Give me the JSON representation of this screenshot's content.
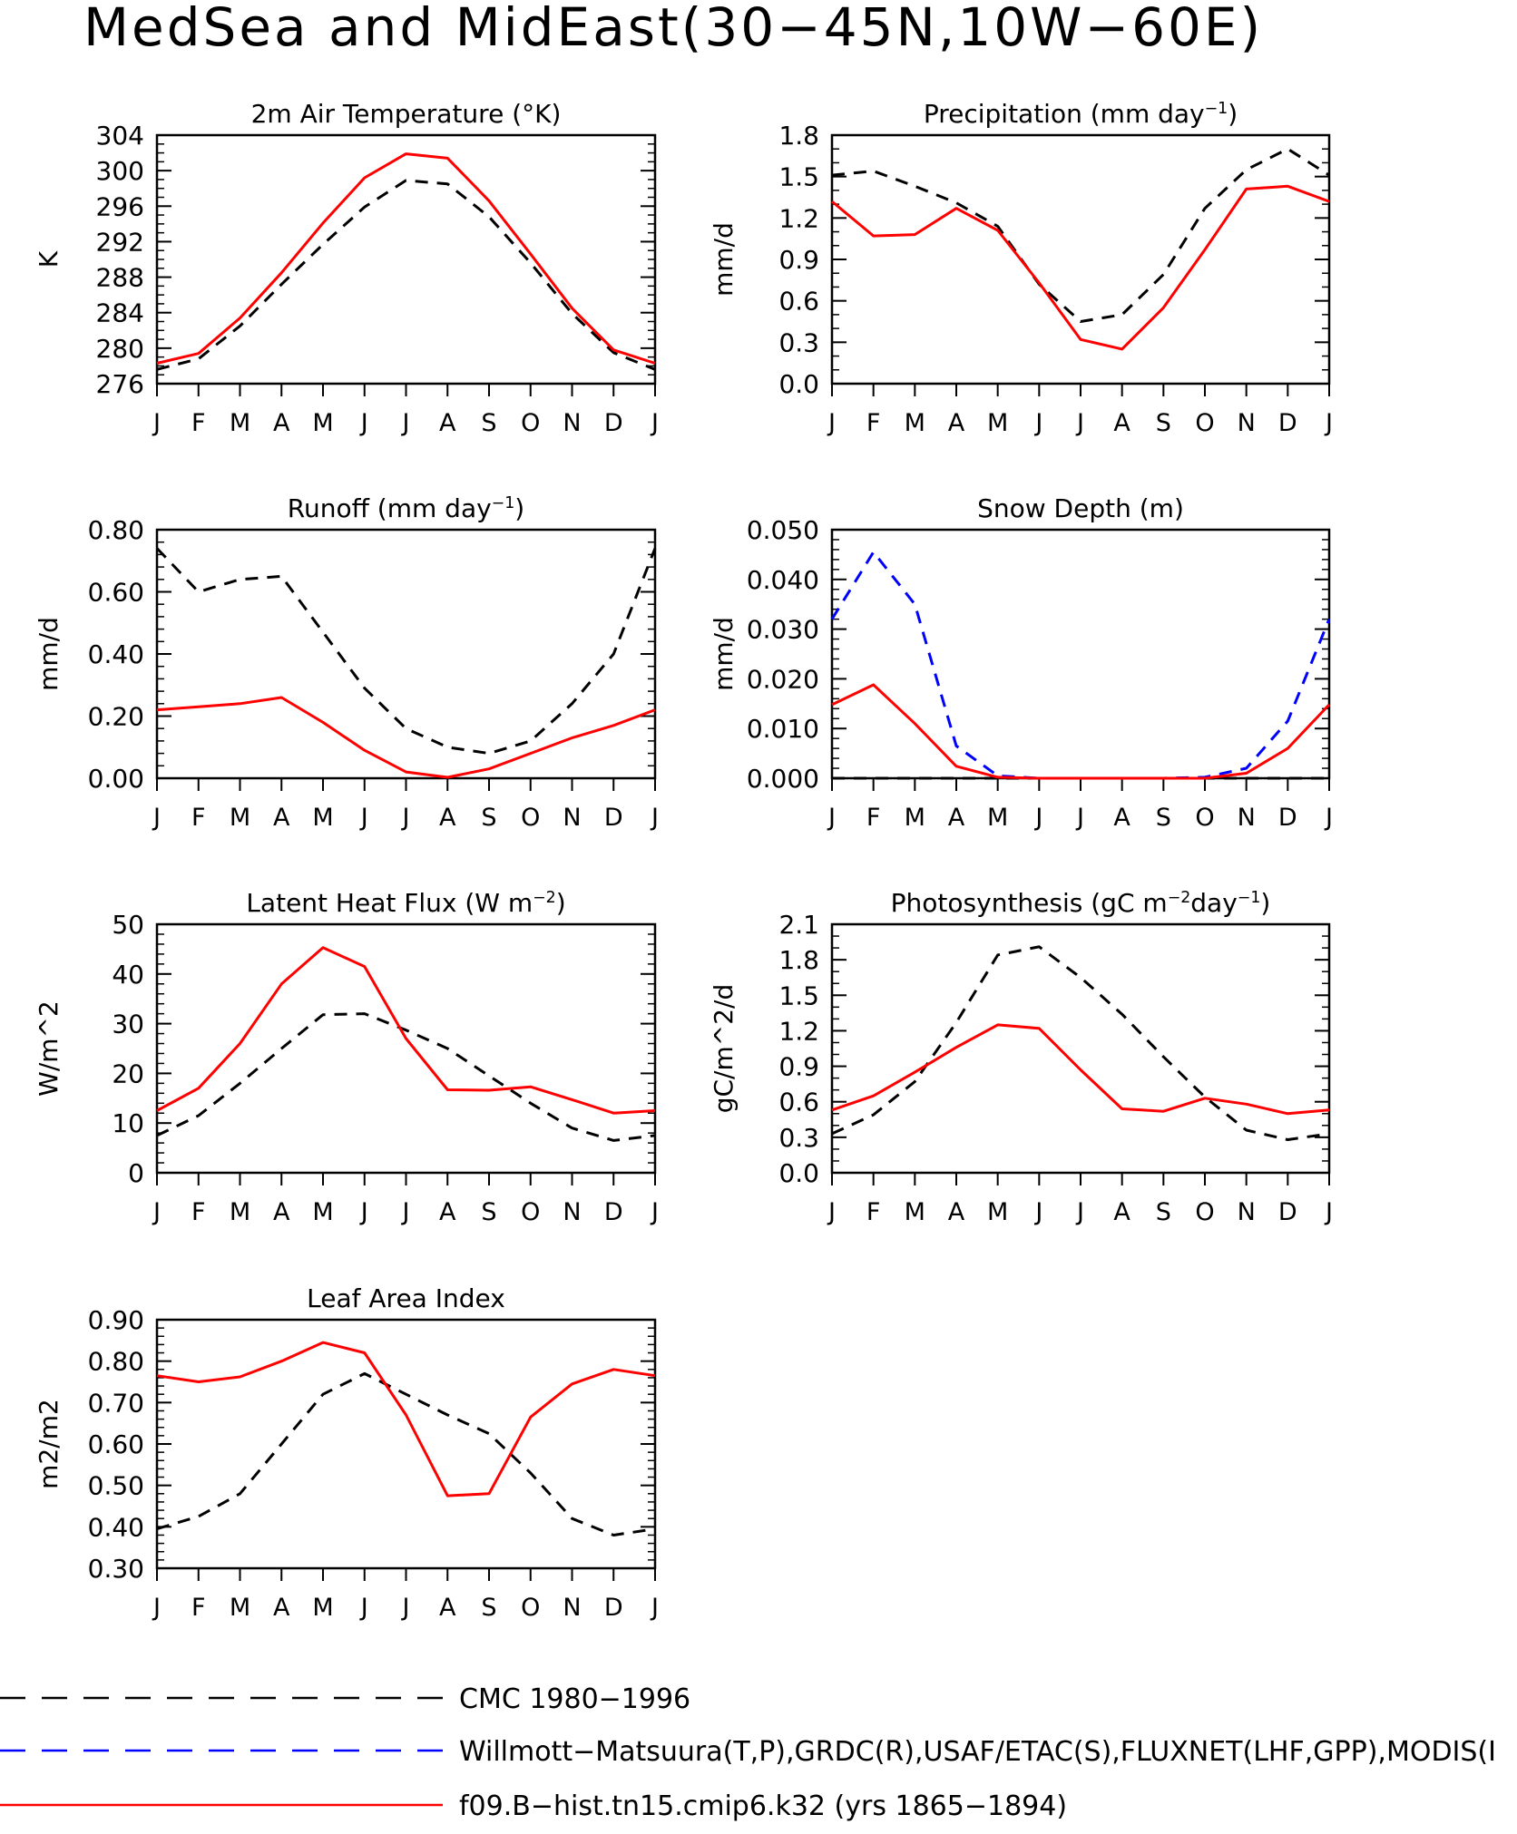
{
  "figure": {
    "title": "MedSea and MidEast(30−45N,10W−60E)",
    "legend": [
      {
        "label": "CMC 1980−1996",
        "color": "#000000",
        "dash": "dash-long"
      },
      {
        "label": "Willmott−Matsuura(T,P),GRDC(R),USAF/ETAC(S),FLUXNET(LHF,GPP),MODIS(I",
        "color": "#0000ff",
        "dash": "dash-long"
      },
      {
        "label": "f09.B−hist.tn15.cmip6.k32 (yrs 1865−1894)",
        "color": "#ff0000",
        "dash": "solid"
      }
    ],
    "colors": {
      "cmc": "#000000",
      "obs": "#0000ff",
      "model": "#ff0000"
    }
  },
  "chart_data": [
    {
      "type": "line",
      "title": "2m Air Temperature (°K)",
      "ylabel": "K",
      "x": [
        "J",
        "F",
        "M",
        "A",
        "M",
        "J",
        "J",
        "A",
        "S",
        "O",
        "N",
        "D",
        "J"
      ],
      "ylim": [
        276,
        304
      ],
      "yticks": [
        "276",
        "280",
        "284",
        "288",
        "292",
        "296",
        "300",
        "304"
      ],
      "yminor": 1,
      "series": [
        {
          "name": "CMC 1980−1996",
          "values": [
            277.6,
            278.8,
            282.5,
            287.2,
            291.7,
            295.9,
            298.9,
            298.5,
            294.8,
            289.6,
            283.9,
            279.5,
            277.6
          ]
        },
        {
          "name": "f09.B−hist.tn15.cmip6.k32 (yrs 1865−1894)",
          "values": [
            278.3,
            279.4,
            283.4,
            288.5,
            294.1,
            299.2,
            301.9,
            301.4,
            296.6,
            290.6,
            284.5,
            279.8,
            278.3
          ]
        }
      ]
    },
    {
      "type": "line",
      "title": "Precipitation (mm day⁻¹)",
      "ylabel": "mm/d",
      "x": [
        "J",
        "F",
        "M",
        "A",
        "M",
        "J",
        "J",
        "A",
        "S",
        "O",
        "N",
        "D",
        "J"
      ],
      "ylim": [
        0.0,
        1.8
      ],
      "yticks": [
        "0.0",
        "0.3",
        "0.6",
        "0.9",
        "1.2",
        "1.5",
        "1.8"
      ],
      "yminor": 0.1,
      "series": [
        {
          "name": "CMC 1980−1996",
          "values": [
            1.51,
            1.54,
            1.43,
            1.31,
            1.14,
            0.72,
            0.45,
            0.5,
            0.79,
            1.27,
            1.55,
            1.7,
            1.51
          ]
        },
        {
          "name": "f09.B−hist.tn15.cmip6.k32 (yrs 1865−1894)",
          "values": [
            1.32,
            1.07,
            1.08,
            1.27,
            1.11,
            0.73,
            0.32,
            0.25,
            0.55,
            0.97,
            1.41,
            1.43,
            1.32
          ]
        }
      ]
    },
    {
      "type": "line",
      "title": "Runoff (mm day⁻¹)",
      "ylabel": "mm/d",
      "x": [
        "J",
        "F",
        "M",
        "A",
        "M",
        "J",
        "J",
        "A",
        "S",
        "O",
        "N",
        "D",
        "J"
      ],
      "ylim": [
        0.0,
        0.8
      ],
      "yticks": [
        "0.00",
        "0.20",
        "0.40",
        "0.60",
        "0.80"
      ],
      "yminor": 0.04,
      "series": [
        {
          "name": "CMC 1980−1996",
          "values": [
            0.74,
            0.6,
            0.64,
            0.65,
            0.47,
            0.29,
            0.16,
            0.1,
            0.08,
            0.12,
            0.24,
            0.4,
            0.74
          ]
        },
        {
          "name": "f09.B−hist.tn15.cmip6.k32 (yrs 1865−1894)",
          "values": [
            0.22,
            0.23,
            0.24,
            0.26,
            0.18,
            0.09,
            0.02,
            0.003,
            0.03,
            0.08,
            0.13,
            0.17,
            0.22
          ]
        }
      ]
    },
    {
      "type": "line",
      "title": "Snow Depth (m)",
      "ylabel": "mm/d",
      "x": [
        "J",
        "F",
        "M",
        "A",
        "M",
        "J",
        "J",
        "A",
        "S",
        "O",
        "N",
        "D",
        "J"
      ],
      "ylim": [
        0.0,
        0.05
      ],
      "yticks": [
        "0.000",
        "0.010",
        "0.020",
        "0.030",
        "0.040",
        "0.050"
      ],
      "yminor": 0.002,
      "series": [
        {
          "name": "CMC 1980−1996",
          "values": [
            0,
            0,
            0,
            0,
            0,
            0,
            0,
            0,
            0,
            0,
            0,
            0,
            0
          ]
        },
        {
          "name": "Willmott−Matsuura(T,P),GRDC(R),USAF/ETAC(S),FLUXNET(LHF,GPP),MODIS(I",
          "values": [
            0.032,
            0.0455,
            0.035,
            0.0065,
            0.0005,
            0,
            0,
            0,
            0,
            0.0002,
            0.002,
            0.0115,
            0.032
          ]
        },
        {
          "name": "f09.B−hist.tn15.cmip6.k32 (yrs 1865−1894)",
          "values": [
            0.0148,
            0.0188,
            0.011,
            0.0024,
            0.0002,
            0,
            0,
            0,
            0,
            0,
            0.001,
            0.006,
            0.0148
          ]
        }
      ]
    },
    {
      "type": "line",
      "title": "Latent Heat Flux (W m⁻²)",
      "ylabel": "W/m^2",
      "x": [
        "J",
        "F",
        "M",
        "A",
        "M",
        "J",
        "J",
        "A",
        "S",
        "O",
        "N",
        "D",
        "J"
      ],
      "ylim": [
        0,
        50
      ],
      "yticks": [
        "0",
        "10",
        "20",
        "30",
        "40",
        "50"
      ],
      "yminor": 2,
      "series": [
        {
          "name": "CMC 1980−1996",
          "values": [
            7.5,
            11.5,
            18,
            25,
            31.8,
            32,
            28.7,
            25,
            19.5,
            14,
            9,
            6.5,
            7.5
          ]
        },
        {
          "name": "f09.B−hist.tn15.cmip6.k32 (yrs 1865−1894)",
          "values": [
            12.5,
            17,
            26,
            38,
            45.3,
            41.5,
            27,
            16.7,
            16.6,
            17.3,
            14.7,
            12,
            12.5
          ]
        }
      ]
    },
    {
      "type": "line",
      "title": "Photosynthesis (gC m⁻²day⁻¹)",
      "ylabel": "gC/m^2/d",
      "x": [
        "J",
        "F",
        "M",
        "A",
        "M",
        "J",
        "J",
        "A",
        "S",
        "O",
        "N",
        "D",
        "J"
      ],
      "ylim": [
        0.0,
        2.1
      ],
      "yticks": [
        "0.0",
        "0.3",
        "0.6",
        "0.9",
        "1.2",
        "1.5",
        "1.8",
        "2.1"
      ],
      "yminor": 0.1,
      "series": [
        {
          "name": "CMC 1980−1996",
          "values": [
            0.33,
            0.49,
            0.77,
            1.27,
            1.84,
            1.91,
            1.65,
            1.34,
            0.98,
            0.64,
            0.36,
            0.28,
            0.33
          ]
        },
        {
          "name": "f09.B−hist.tn15.cmip6.k32 (yrs 1865−1894)",
          "values": [
            0.53,
            0.65,
            0.85,
            1.06,
            1.25,
            1.22,
            0.87,
            0.54,
            0.52,
            0.63,
            0.58,
            0.5,
            0.53
          ]
        }
      ]
    },
    {
      "type": "line",
      "title": "Leaf Area Index",
      "ylabel": "m2/m2",
      "x": [
        "J",
        "F",
        "M",
        "A",
        "M",
        "J",
        "J",
        "A",
        "S",
        "O",
        "N",
        "D",
        "J"
      ],
      "ylim": [
        0.3,
        0.9
      ],
      "yticks": [
        "0.30",
        "0.40",
        "0.50",
        "0.60",
        "0.70",
        "0.80",
        "0.90"
      ],
      "yminor": 0.02,
      "series": [
        {
          "name": "CMC 1980−1996",
          "values": [
            0.395,
            0.425,
            0.48,
            0.6,
            0.72,
            0.77,
            0.72,
            0.67,
            0.625,
            0.53,
            0.42,
            0.38,
            0.395
          ]
        },
        {
          "name": "f09.B−hist.tn15.cmip6.k32 (yrs 1865−1894)",
          "values": [
            0.765,
            0.75,
            0.762,
            0.8,
            0.845,
            0.82,
            0.67,
            0.475,
            0.48,
            0.665,
            0.745,
            0.78,
            0.765
          ]
        }
      ]
    }
  ]
}
